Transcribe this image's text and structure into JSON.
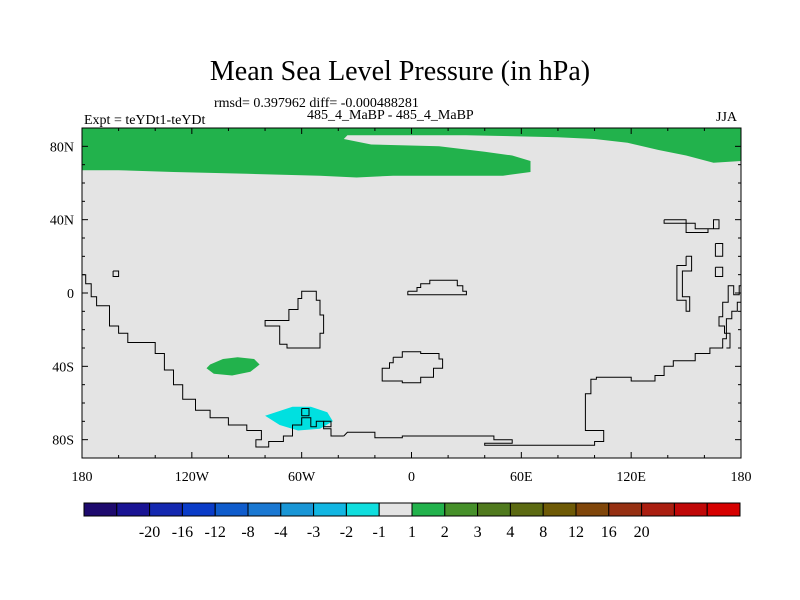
{
  "title": "Mean Sea Level Pressure (in hPa)",
  "stats_line": "rmsd= 0.397962 diff= -0.000488281",
  "experiment_label": "Expt = teYDt1-teYDt",
  "subtitle": "485_4_MaBP - 485_4_MaBP",
  "season": "JJA",
  "chart_data": {
    "type": "heatmap",
    "title": "Mean Sea Level Pressure (in hPa)",
    "variable": "Mean sea level pressure difference",
    "units": "hPa",
    "xlim": [
      -180,
      180
    ],
    "ylim": [
      -90,
      90
    ],
    "x_ticks": [
      {
        "value": -180,
        "label": "180"
      },
      {
        "value": -120,
        "label": "120W"
      },
      {
        "value": -60,
        "label": "60W"
      },
      {
        "value": 0,
        "label": "0"
      },
      {
        "value": 60,
        "label": "60E"
      },
      {
        "value": 120,
        "label": "120E"
      },
      {
        "value": 180,
        "label": "180"
      }
    ],
    "y_ticks": [
      {
        "value": 80,
        "label": "80N"
      },
      {
        "value": 40,
        "label": "40N"
      },
      {
        "value": 0,
        "label": "0"
      },
      {
        "value": -40,
        "label": "40S"
      },
      {
        "value": -80,
        "label": "80S"
      }
    ],
    "background_bin": "-1 to 1",
    "regions": [
      {
        "bin": "1 to 2",
        "color": "#22b24c",
        "points": [
          [
            -180,
            90
          ],
          [
            180,
            90
          ],
          [
            180,
            72
          ],
          [
            165,
            71
          ],
          [
            150,
            75
          ],
          [
            135,
            78
          ],
          [
            118,
            82
          ],
          [
            100,
            84
          ],
          [
            80,
            85
          ],
          [
            30,
            86
          ],
          [
            -35,
            86
          ],
          [
            -37,
            84
          ],
          [
            -22,
            81
          ],
          [
            15,
            80
          ],
          [
            40,
            77
          ],
          [
            55,
            75
          ],
          [
            65,
            72
          ],
          [
            65,
            66
          ],
          [
            50,
            64
          ],
          [
            20,
            64
          ],
          [
            -10,
            64
          ],
          [
            -30,
            63
          ],
          [
            -50,
            64
          ],
          [
            -90,
            65
          ],
          [
            -130,
            66
          ],
          [
            -160,
            67
          ],
          [
            -180,
            67
          ]
        ]
      },
      {
        "bin": "1 to 2",
        "color": "#22b24c",
        "points": [
          [
            -110,
            -39
          ],
          [
            -103,
            -36
          ],
          [
            -95,
            -35
          ],
          [
            -86,
            -36
          ],
          [
            -83,
            -39
          ],
          [
            -88,
            -43
          ],
          [
            -98,
            -45
          ],
          [
            -108,
            -44
          ],
          [
            -112,
            -41
          ]
        ]
      },
      {
        "bin": "-2 to -1",
        "color": "#00e0e0",
        "points": [
          [
            -80,
            -67
          ],
          [
            -65,
            -62
          ],
          [
            -55,
            -62
          ],
          [
            -46,
            -65
          ],
          [
            -43,
            -70
          ],
          [
            -50,
            -74
          ],
          [
            -62,
            -75
          ],
          [
            -72,
            -72
          ]
        ]
      }
    ],
    "coastlines": [
      {
        "name": "south-america",
        "points": [
          [
            -181,
            10
          ],
          [
            -178,
            10
          ],
          [
            -178,
            5
          ],
          [
            -175,
            5
          ],
          [
            -175,
            -2
          ],
          [
            -172,
            -2
          ],
          [
            -172,
            -7
          ],
          [
            -165,
            -7
          ],
          [
            -165,
            -18
          ],
          [
            -160,
            -18
          ],
          [
            -160,
            -22
          ],
          [
            -155,
            -22
          ],
          [
            -155,
            -27
          ],
          [
            -140,
            -27
          ],
          [
            -140,
            -33
          ],
          [
            -135,
            -33
          ],
          [
            -135,
            -42
          ],
          [
            -130,
            -42
          ],
          [
            -130,
            -50
          ],
          [
            -125,
            -50
          ],
          [
            -125,
            -58
          ],
          [
            -118,
            -58
          ],
          [
            -118,
            -64
          ],
          [
            -110,
            -64
          ],
          [
            -110,
            -68
          ],
          [
            -100,
            -68
          ],
          [
            -100,
            -72
          ],
          [
            -90,
            -72
          ],
          [
            -90,
            -75
          ],
          [
            -82,
            -75
          ],
          [
            -82,
            -80
          ],
          [
            -85,
            -80
          ],
          [
            -85,
            -84
          ],
          [
            -78,
            -84
          ],
          [
            -78,
            -81
          ],
          [
            -70,
            -81
          ],
          [
            -70,
            -78
          ],
          [
            -65,
            -78
          ],
          [
            -65,
            -72
          ],
          [
            -60,
            -72
          ],
          [
            -60,
            -68
          ],
          [
            -55,
            -68
          ],
          [
            -55,
            -73
          ],
          [
            -52,
            -73
          ],
          [
            -52,
            -70
          ],
          [
            -48,
            -70
          ],
          [
            -48,
            -74
          ],
          [
            -44,
            -74
          ],
          [
            -44,
            -78
          ],
          [
            -37,
            -78
          ]
        ]
      },
      {
        "name": "africa",
        "points": [
          [
            -55,
            1
          ],
          [
            -60,
            1
          ],
          [
            -60,
            -3
          ],
          [
            -62,
            -3
          ],
          [
            -62,
            -9
          ],
          [
            -67,
            -9
          ],
          [
            -67,
            -15
          ],
          [
            -80,
            -15
          ],
          [
            -80,
            -18
          ],
          [
            -72,
            -18
          ],
          [
            -72,
            -28
          ],
          [
            -68,
            -28
          ],
          [
            -68,
            -30
          ],
          [
            -50,
            -30
          ],
          [
            -50,
            -22
          ],
          [
            -48,
            -22
          ],
          [
            -48,
            -12
          ],
          [
            -50,
            -12
          ],
          [
            -50,
            -4
          ],
          [
            -52,
            -4
          ],
          [
            -52,
            1
          ],
          [
            -55,
            1
          ]
        ]
      },
      {
        "name": "australia",
        "points": [
          [
            -10,
            -35
          ],
          [
            -5,
            -35
          ],
          [
            -5,
            -32
          ],
          [
            5,
            -32
          ],
          [
            5,
            -33
          ],
          [
            15,
            -33
          ],
          [
            15,
            -36
          ],
          [
            17,
            -36
          ],
          [
            17,
            -41
          ],
          [
            12,
            -41
          ],
          [
            12,
            -46
          ],
          [
            5,
            -46
          ],
          [
            5,
            -49
          ],
          [
            -5,
            -49
          ],
          [
            -5,
            -48
          ],
          [
            -16,
            -48
          ],
          [
            -16,
            -41
          ],
          [
            -12,
            -41
          ],
          [
            -12,
            -38
          ],
          [
            -10,
            -38
          ],
          [
            -10,
            -35
          ]
        ]
      },
      {
        "name": "small-island",
        "points": [
          [
            -2,
            1
          ],
          [
            -2,
            -1
          ],
          [
            30,
            -1
          ],
          [
            30,
            1
          ],
          [
            28,
            1
          ],
          [
            28,
            4
          ],
          [
            25,
            4
          ],
          [
            25,
            7
          ],
          [
            10,
            7
          ],
          [
            10,
            5
          ],
          [
            5,
            5
          ],
          [
            5,
            3
          ],
          [
            3,
            3
          ],
          [
            3,
            1
          ],
          [
            -2,
            1
          ]
        ]
      },
      {
        "name": "antarctica",
        "points": [
          [
            -37,
            -78
          ],
          [
            -35,
            -76
          ],
          [
            -20,
            -76
          ],
          [
            -20,
            -79
          ],
          [
            -5,
            -79
          ],
          [
            -5,
            -78
          ],
          [
            45,
            -78
          ],
          [
            45,
            -80
          ],
          [
            55,
            -80
          ],
          [
            55,
            -82
          ],
          [
            40,
            -82
          ],
          [
            40,
            -83
          ],
          [
            100,
            -83
          ],
          [
            100,
            -81
          ],
          [
            105,
            -81
          ],
          [
            105,
            -75
          ],
          [
            95,
            -75
          ],
          [
            95,
            -55
          ],
          [
            98,
            -55
          ],
          [
            98,
            -47
          ],
          [
            101,
            -47
          ],
          [
            101,
            -46
          ],
          [
            120,
            -46
          ],
          [
            120,
            -48
          ],
          [
            133,
            -48
          ],
          [
            133,
            -45
          ],
          [
            138,
            -45
          ],
          [
            138,
            -40
          ],
          [
            143,
            -40
          ],
          [
            143,
            -37
          ],
          [
            155,
            -37
          ],
          [
            155,
            -33
          ],
          [
            163,
            -33
          ],
          [
            163,
            -30
          ],
          [
            170,
            -30
          ],
          [
            170,
            -25
          ],
          [
            172,
            -25
          ],
          [
            172,
            -14
          ],
          [
            175,
            -14
          ],
          [
            175,
            -10
          ],
          [
            178,
            -10
          ],
          [
            178,
            -5
          ],
          [
            181,
            -5
          ]
        ]
      },
      {
        "name": "asia-rim",
        "points": [
          [
            181,
            4
          ],
          [
            179,
            4
          ],
          [
            179,
            -1
          ],
          [
            176,
            -1
          ],
          [
            176,
            4
          ],
          [
            173,
            4
          ],
          [
            173,
            -5
          ],
          [
            170,
            -5
          ],
          [
            170,
            -13
          ],
          [
            168,
            -13
          ],
          [
            168,
            -18
          ],
          [
            171,
            -18
          ],
          [
            171,
            -22
          ],
          [
            174,
            -22
          ],
          [
            174,
            -30
          ],
          [
            172,
            -30
          ]
        ]
      },
      {
        "name": "asia-islands-a",
        "points": [
          [
            150,
            20
          ],
          [
            150,
            15
          ],
          [
            145,
            15
          ],
          [
            145,
            -4
          ],
          [
            150,
            -4
          ],
          [
            150,
            -10
          ],
          [
            152,
            -10
          ],
          [
            152,
            -2
          ],
          [
            148,
            -2
          ],
          [
            148,
            12
          ],
          [
            153,
            12
          ],
          [
            153,
            20
          ],
          [
            150,
            20
          ]
        ]
      },
      {
        "name": "asia-islands-b",
        "points": [
          [
            138,
            40
          ],
          [
            150,
            40
          ],
          [
            150,
            38
          ],
          [
            155,
            38
          ],
          [
            155,
            35
          ],
          [
            165,
            35
          ],
          [
            165,
            40
          ],
          [
            168,
            40
          ],
          [
            168,
            35
          ],
          [
            162,
            35
          ],
          [
            162,
            33
          ],
          [
            150,
            33
          ],
          [
            150,
            38
          ],
          [
            138,
            38
          ],
          [
            138,
            40
          ]
        ]
      },
      {
        "name": "asia-islands-c",
        "points": [
          [
            166,
            27
          ],
          [
            170,
            27
          ],
          [
            170,
            20
          ],
          [
            166,
            20
          ],
          [
            166,
            27
          ]
        ]
      },
      {
        "name": "asia-islands-d",
        "points": [
          [
            166,
            14
          ],
          [
            166,
            9
          ],
          [
            170,
            9
          ],
          [
            170,
            14
          ],
          [
            166,
            14
          ]
        ]
      },
      {
        "name": "pacific-islet",
        "points": [
          [
            -163,
            12
          ],
          [
            -160,
            12
          ],
          [
            -160,
            9
          ],
          [
            -163,
            9
          ],
          [
            -163,
            12
          ]
        ]
      },
      {
        "name": "antarctic-islet-a",
        "points": [
          [
            -60,
            -63
          ],
          [
            -56,
            -63
          ],
          [
            -56,
            -67
          ],
          [
            -60,
            -67
          ],
          [
            -60,
            -63
          ]
        ]
      },
      {
        "name": "antarctic-islet-b",
        "points": [
          [
            -48,
            -70
          ],
          [
            -44,
            -70
          ],
          [
            -44,
            -73
          ],
          [
            -48,
            -73
          ],
          [
            -48,
            -70
          ]
        ]
      }
    ]
  },
  "colorbar": {
    "colors": [
      "#1e0a6e",
      "#1a1494",
      "#1428b0",
      "#0a3cc8",
      "#0f5ccc",
      "#1a78d2",
      "#1996d6",
      "#12b6e2",
      "#10dede",
      "#e4e4e4",
      "#22b24c",
      "#46902a",
      "#507a1e",
      "#5c6a12",
      "#6e5a06",
      "#80460a",
      "#963012",
      "#aa1e10",
      "#c00808",
      "#d60000"
    ],
    "labels": [
      "-20",
      "-16",
      "-12",
      "-8",
      "-4",
      "-3",
      "-2",
      "-1",
      "1",
      "2",
      "3",
      "4",
      "8",
      "12",
      "16",
      "20"
    ]
  }
}
